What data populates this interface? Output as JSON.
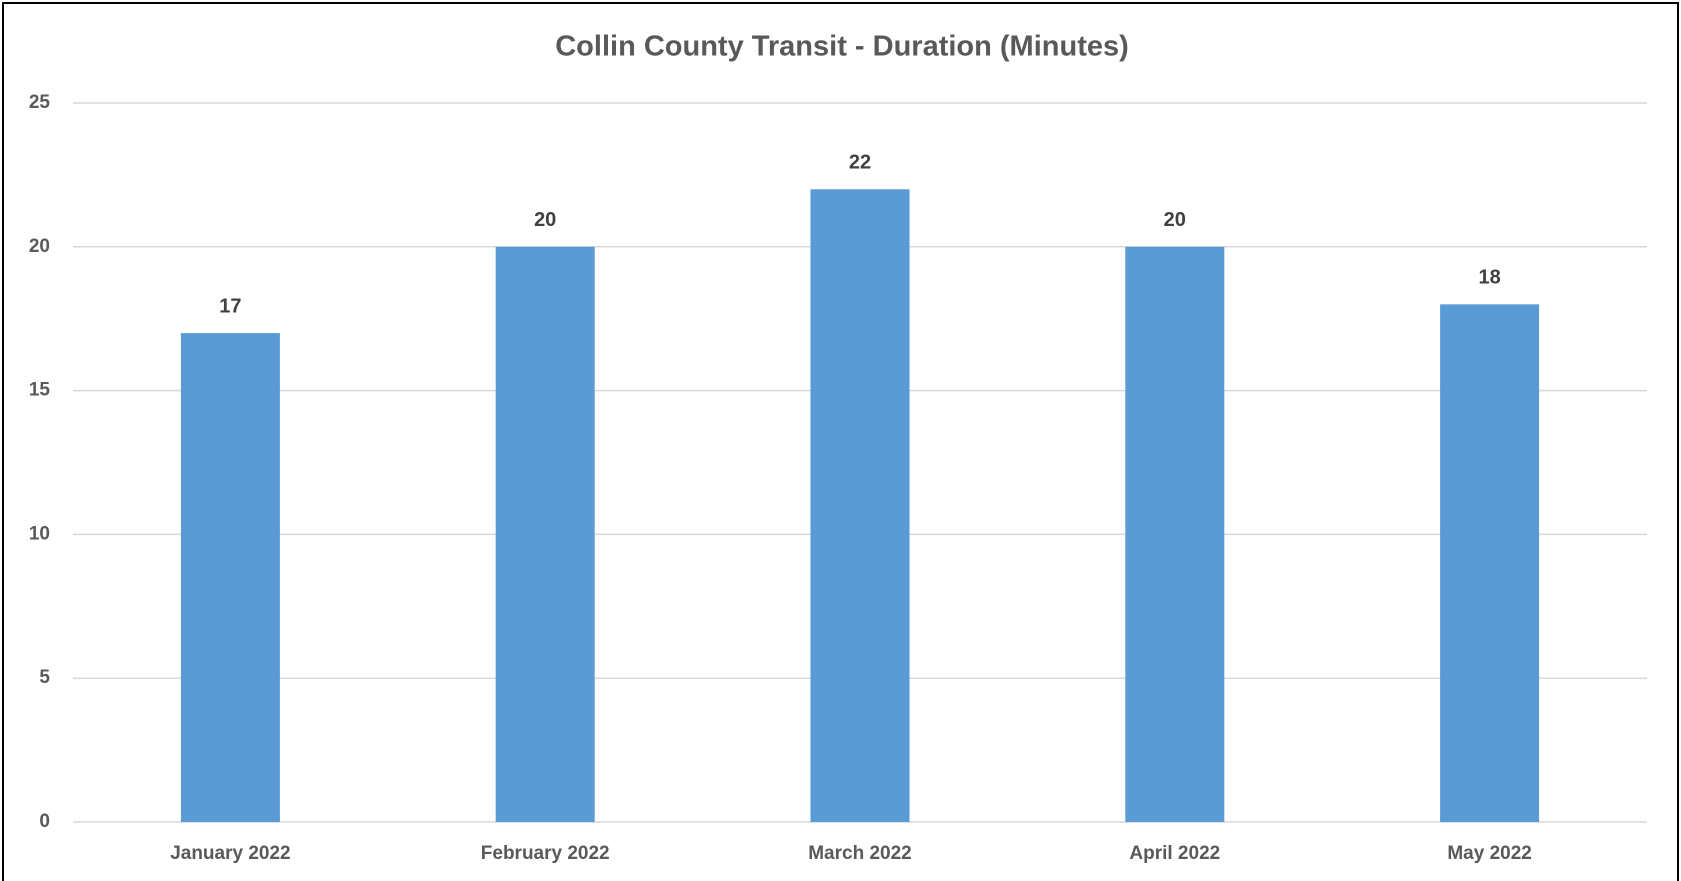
{
  "chart_data": {
    "type": "bar",
    "title": "Collin County Transit - Duration (Minutes)",
    "categories": [
      "January 2022",
      "February 2022",
      "March 2022",
      "April 2022",
      "May 2022"
    ],
    "values": [
      17,
      20,
      22,
      20,
      18
    ],
    "color": "#5b9bd5",
    "ylim": [
      0,
      25
    ],
    "yticks": [
      0,
      5,
      10,
      15,
      20,
      25
    ],
    "grid": true
  }
}
